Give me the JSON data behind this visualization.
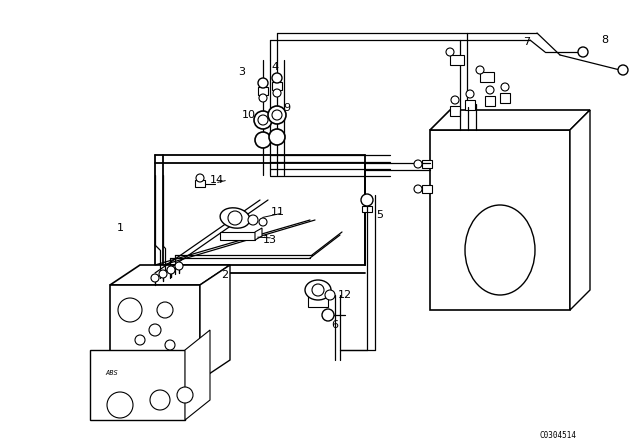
{
  "background_color": "#ffffff",
  "line_color": "#000000",
  "part_number": "C0304514",
  "fig_width": 6.4,
  "fig_height": 4.48,
  "dpi": 100
}
